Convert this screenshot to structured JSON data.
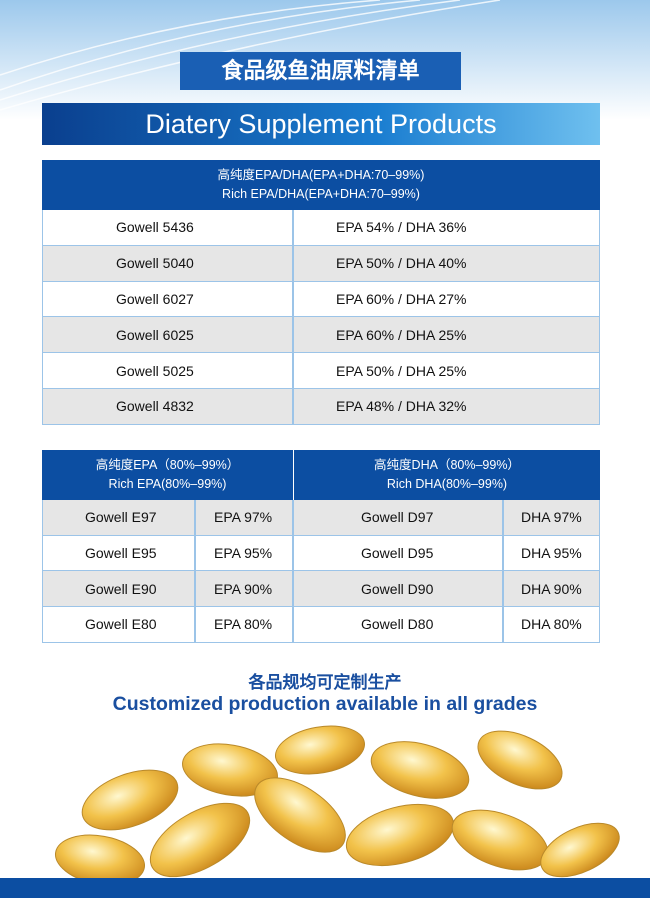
{
  "header": {
    "cn_title": "食品级鱼油原料清单",
    "en_title": "Diatery Supplement Products"
  },
  "table1": {
    "header": [
      "高纯度EPA/DHA(EPA+DHA:70–99%)",
      "Rich EPA/DHA(EPA+DHA:70–99%)"
    ],
    "rows": [
      [
        "Gowell 5436",
        "EPA 54% / DHA 36%"
      ],
      [
        "Gowell 5040",
        "EPA 50% / DHA 40%"
      ],
      [
        "Gowell 6027",
        "EPA 60% / DHA 27%"
      ],
      [
        "Gowell 6025",
        "EPA 60% / DHA 25%"
      ],
      [
        "Gowell 5025",
        "EPA 50% / DHA 25%"
      ],
      [
        "Gowell 4832",
        "EPA 48% / DHA 32%"
      ]
    ]
  },
  "table2": {
    "headers": [
      [
        "高纯度EPA（80%–99%）",
        "Rich EPA(80%–99%)"
      ],
      [
        "高纯度DHA（80%–99%）",
        "Rich DHA(80%–99%)"
      ]
    ],
    "rows": [
      [
        "Gowell E97",
        "EPA 97%",
        "Gowell D97",
        "DHA 97%"
      ],
      [
        "Gowell E95",
        "EPA 95%",
        "Gowell D95",
        "DHA 95%"
      ],
      [
        "Gowell E90",
        "EPA 90%",
        "Gowell D90",
        "DHA 90%"
      ],
      [
        "Gowell E80",
        "EPA 80%",
        "Gowell D80",
        "DHA 80%"
      ]
    ]
  },
  "footer": {
    "cn": "各品规均可定制生产",
    "en": "Customized production available in all grades"
  }
}
